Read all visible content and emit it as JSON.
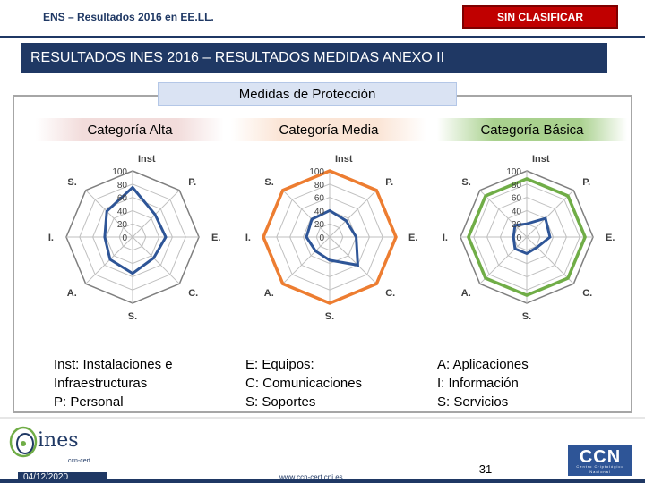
{
  "header": {
    "title": "ENS – Resultados 2016 en EE.LL.",
    "classification": "SIN CLASIFICAR"
  },
  "banner": "RESULTADOS INES 2016 – RESULTADOS MEDIDAS ANEXO II",
  "section_title": "Medidas de Protección",
  "colors": {
    "navy": "#1f3864",
    "alta": "#2e5597",
    "media": "#ed7d31",
    "basica": "#70ad47",
    "badge": "#c00000"
  },
  "chart_data": [
    {
      "type": "radar",
      "title": "Categoría Alta",
      "axes": [
        "Inst",
        "P.",
        "E.",
        "C.",
        "S.",
        "A.",
        "I.",
        "S."
      ],
      "ticks": [
        "100",
        "80",
        "60",
        "40",
        "20",
        "0"
      ],
      "range": [
        0,
        100
      ],
      "values": [
        75,
        48,
        50,
        45,
        55,
        48,
        42,
        55
      ]
    },
    {
      "type": "radar",
      "title": "Categoría Media",
      "axes": [
        "Inst",
        "P.",
        "E.",
        "C.",
        "S.",
        "A.",
        "I.",
        "S."
      ],
      "ticks": [
        "100",
        "80",
        "60",
        "40",
        "20",
        "0"
      ],
      "range": [
        0,
        100
      ],
      "values": [
        40,
        35,
        40,
        60,
        35,
        30,
        35,
        38
      ],
      "reference": 100
    },
    {
      "type": "radar",
      "title": "Categoría Básica",
      "axes": [
        "Inst",
        "P.",
        "E.",
        "C.",
        "S.",
        "A.",
        "I.",
        "S."
      ],
      "ticks": [
        "100",
        "80",
        "60",
        "40",
        "20",
        "0"
      ],
      "range": [
        0,
        100
      ],
      "values": [
        20,
        40,
        35,
        22,
        25,
        25,
        20,
        25
      ],
      "reference": 88
    }
  ],
  "legend": [
    "Inst: Instalaciones e\nInfraestructuras\nP: Personal",
    "E: Equipos:\nC: Comunicaciones\nS: Soportes",
    "A: Aplicaciones\nI: Información\nS: Servicios"
  ],
  "footer": {
    "logo_text": "ines",
    "logo_sub": "ccn-cert",
    "date": "04/12/2020",
    "website": "www.ccn-cert.cni.es",
    "page": "31",
    "ccn_logo": "CCN",
    "ccn_sub": "Centro Criptológico Nacional"
  }
}
